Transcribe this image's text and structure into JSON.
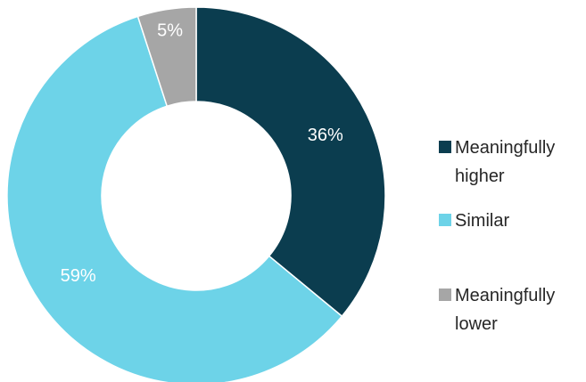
{
  "chart_data": {
    "type": "pie",
    "style": "donut",
    "title": "",
    "categories": [
      "Meaningfully higher",
      "Similar",
      "Meaningfully lower"
    ],
    "values": [
      36,
      59,
      5
    ],
    "labels": [
      "36%",
      "59%",
      "5%"
    ],
    "unit": "%",
    "colors": [
      "#0b3d4f",
      "#6dd3e8",
      "#a6a6a6"
    ],
    "label_colors": [
      "#ffffff",
      "#ffffff",
      "#ffffff"
    ],
    "start_angle_deg": 0,
    "direction": "clockwise",
    "legend": {
      "placement": "right",
      "entries": [
        {
          "lines": [
            "Meaningfully",
            "higher"
          ],
          "color": "#0b3d4f"
        },
        {
          "lines": [
            "Similar"
          ],
          "color": "#6dd3e8"
        },
        {
          "lines": [
            "Meaningfully",
            "lower"
          ],
          "color": "#a6a6a6"
        }
      ]
    }
  }
}
